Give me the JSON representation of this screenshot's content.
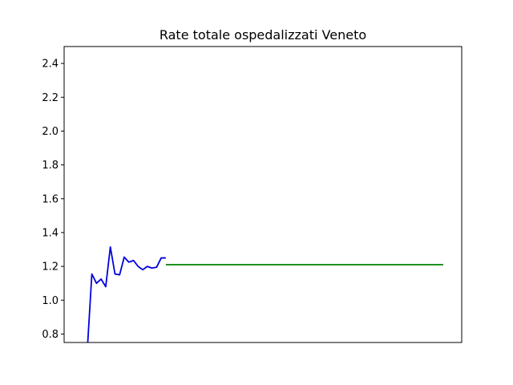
{
  "chart_data": {
    "type": "line",
    "title": "Rate totale ospedalizzati Veneto",
    "xlabel": "",
    "ylabel": "",
    "xlim": [
      0,
      86
    ],
    "ylim": [
      0.75,
      2.5
    ],
    "yticks": [
      0.8,
      1.0,
      1.2,
      1.4,
      1.6,
      1.8,
      2.0,
      2.2,
      2.4
    ],
    "grid": false,
    "series": [
      {
        "color": "#0000dd",
        "x": [
          5,
          6,
          7,
          8,
          9,
          10,
          11,
          12,
          13,
          14,
          15,
          16,
          17,
          18,
          19,
          20,
          21,
          22
        ],
        "y": [
          0.7,
          1.155,
          1.1,
          1.125,
          1.08,
          1.315,
          1.155,
          1.15,
          1.255,
          1.225,
          1.235,
          1.2,
          1.18,
          1.2,
          1.19,
          1.195,
          1.25,
          1.25
        ]
      },
      {
        "color": "#008000",
        "x": [
          22,
          82
        ],
        "y": [
          1.21,
          1.21
        ]
      }
    ]
  }
}
